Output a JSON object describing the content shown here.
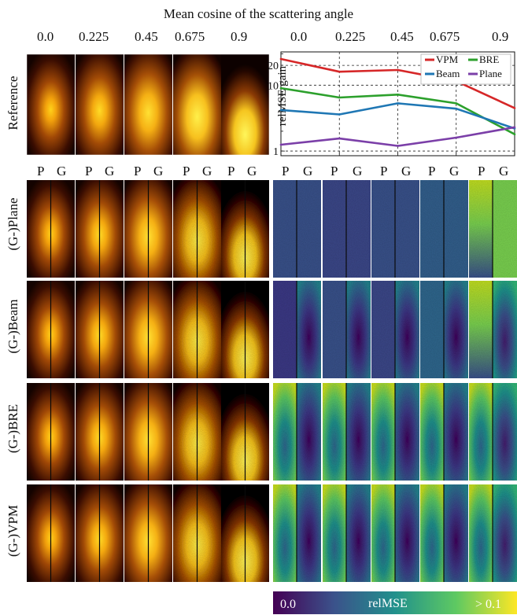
{
  "figure": {
    "title": "Mean cosine of the scattering angle",
    "g_values": [
      "0.0",
      "0.225",
      "0.45",
      "0.675",
      "0.9"
    ],
    "pg_labels": [
      "P",
      "G"
    ],
    "reference_label": "Reference",
    "row_labels": [
      "(G-)Plane",
      "(G-)Beam",
      "(G-)BRE",
      "(G-)VPM"
    ],
    "colorbar": {
      "min_label": "0.0",
      "title": "relMSE",
      "max_label": "> 0.1"
    },
    "colors": {
      "render_dark": "#140300",
      "render_glow": "#ffd21a",
      "viridis": [
        "#440154",
        "#3b528b",
        "#21918c",
        "#5ec962",
        "#fde725"
      ]
    }
  },
  "chart_data": {
    "type": "line",
    "x": [
      0.0,
      0.225,
      0.45,
      0.675,
      0.9
    ],
    "xlabel": "Mean cosine of the scattering angle",
    "ylabel": "relMSE gain",
    "ylog": true,
    "ylim": [
      0.85,
      32
    ],
    "yticks": [
      1,
      10,
      20
    ],
    "ytick_labels": [
      "1",
      "10",
      "20"
    ],
    "xtick_labels": [
      "0.0",
      "0.225",
      "0.45",
      "0.675",
      "0.9"
    ],
    "grid": true,
    "legend_position": "top-right",
    "series": [
      {
        "name": "VPM",
        "color": "#d62728",
        "values": [
          25,
          16,
          17,
          11.5,
          4.5
        ]
      },
      {
        "name": "BRE",
        "color": "#2ca02c",
        "values": [
          9,
          6.5,
          7.2,
          5.3,
          1.8
        ]
      },
      {
        "name": "Beam",
        "color": "#1f77b4",
        "values": [
          4.2,
          3.6,
          5.3,
          4.4,
          2.2
        ]
      },
      {
        "name": "Plane",
        "color": "#7b3fa8",
        "values": [
          1.25,
          1.55,
          1.2,
          1.6,
          2.3
        ]
      }
    ]
  }
}
